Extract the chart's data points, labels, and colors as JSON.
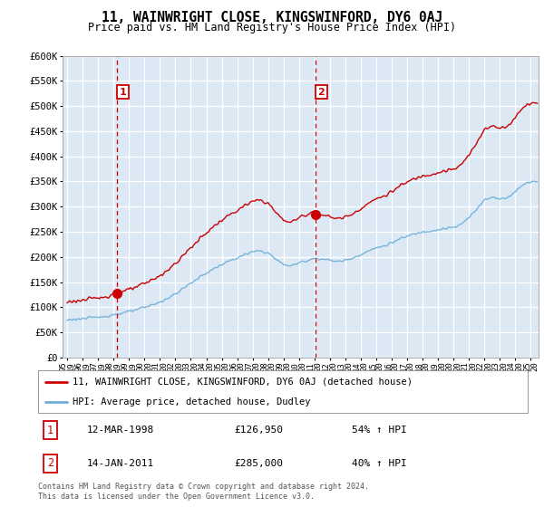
{
  "title": "11, WAINWRIGHT CLOSE, KINGSWINFORD, DY6 0AJ",
  "subtitle": "Price paid vs. HM Land Registry's House Price Index (HPI)",
  "legend_line1": "11, WAINWRIGHT CLOSE, KINGSWINFORD, DY6 0AJ (detached house)",
  "legend_line2": "HPI: Average price, detached house, Dudley",
  "transaction1_label": "1",
  "transaction1_date": "12-MAR-1998",
  "transaction1_price": "£126,950",
  "transaction1_hpi": "54% ↑ HPI",
  "transaction2_label": "2",
  "transaction2_date": "14-JAN-2011",
  "transaction2_price": "£285,000",
  "transaction2_hpi": "40% ↑ HPI",
  "footer": "Contains HM Land Registry data © Crown copyright and database right 2024.\nThis data is licensed under the Open Government Licence v3.0.",
  "ylim": [
    0,
    600000
  ],
  "yticks": [
    0,
    50000,
    100000,
    150000,
    200000,
    250000,
    300000,
    350000,
    400000,
    450000,
    500000,
    550000,
    600000
  ],
  "ytick_labels": [
    "£0",
    "£50K",
    "£100K",
    "£150K",
    "£200K",
    "£250K",
    "£300K",
    "£350K",
    "£400K",
    "£450K",
    "£500K",
    "£550K",
    "£600K"
  ],
  "hpi_color": "#6baed6",
  "price_color": "#cc0000",
  "vline_color": "#cc0000",
  "bg_color": "#ffffff",
  "chart_bg_color": "#dce9f5",
  "grid_color": "#bbbbcc",
  "transaction1_x": 1998.21,
  "transaction2_x": 2011.04,
  "transaction1_y": 126950,
  "transaction2_y": 285000,
  "xlim_left": 1995.0,
  "xlim_right": 2025.5
}
